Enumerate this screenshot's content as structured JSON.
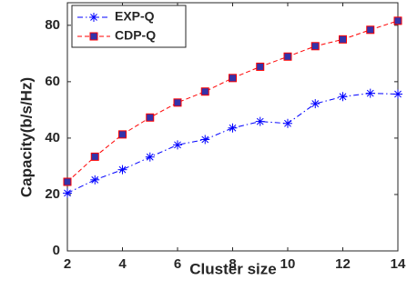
{
  "chart_data": {
    "type": "line",
    "title": "",
    "xlabel": "Cluster size",
    "ylabel": "Capacity(b/s/Hz)",
    "xlim": [
      2,
      14
    ],
    "ylim": [
      0,
      88
    ],
    "xticks": [
      2,
      4,
      6,
      8,
      10,
      12,
      14
    ],
    "yticks": [
      0,
      20,
      40,
      60,
      80
    ],
    "grid": false,
    "legend_position": "top-left",
    "x": [
      2,
      3,
      4,
      5,
      6,
      7,
      8,
      9,
      10,
      11,
      12,
      13,
      14
    ],
    "series": [
      {
        "name": "EXP-Q",
        "values": [
          20.5,
          25.2,
          28.8,
          33.3,
          37.6,
          39.5,
          43.6,
          45.9,
          45.2,
          52.2,
          54.7,
          55.9,
          55.6
        ],
        "color": "#0000ff",
        "marker": "asterisk",
        "line_style": "dash-dot"
      },
      {
        "name": "CDP-Q",
        "values": [
          24.5,
          33.4,
          41.3,
          47.3,
          52.6,
          56.5,
          61.3,
          65.3,
          68.9,
          72.6,
          75.0,
          78.4,
          81.6
        ],
        "color": "#ff0000",
        "marker_fill": "#3333aa",
        "marker": "square",
        "line_style": "dashed"
      }
    ]
  }
}
